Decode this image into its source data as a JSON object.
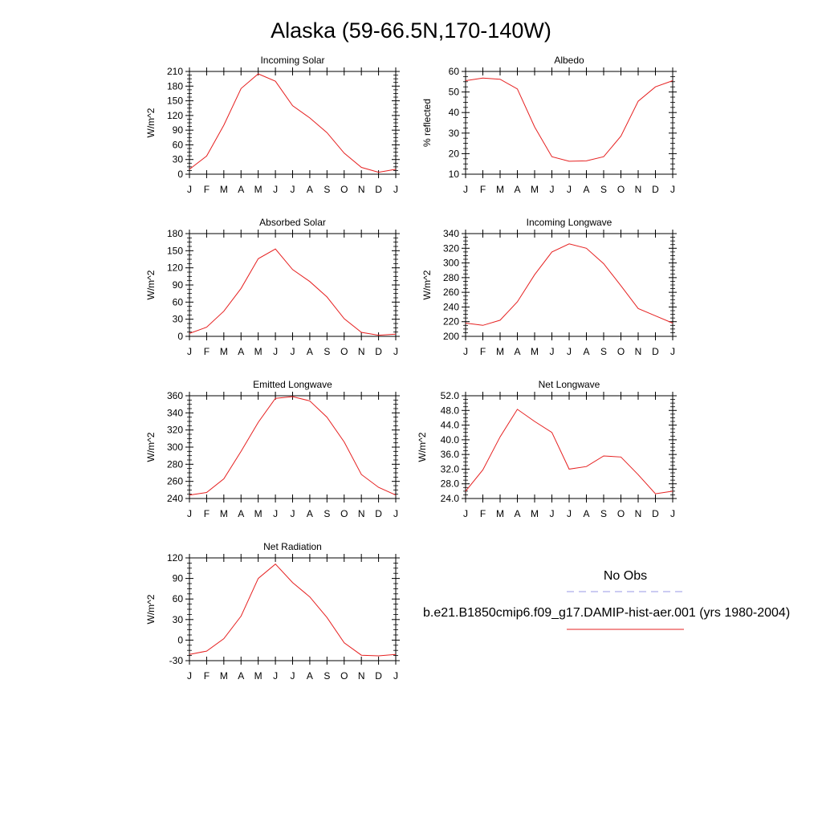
{
  "figure": {
    "title": "Alaska (59-66.5N,170-140W)"
  },
  "legend": {
    "obs_label": "No Obs",
    "obs_color": "#9a9ae6",
    "model_label": "b.e21.B1850cmip6.f09_g17.DAMIP-hist-aer.001 (yrs 1980-2004)",
    "model_color": "#e62020"
  },
  "chart_data": [
    {
      "type": "line",
      "title": "Incoming Solar",
      "ylabel": "W/m^2",
      "categories": [
        "J",
        "F",
        "M",
        "A",
        "M",
        "J",
        "J",
        "A",
        "S",
        "O",
        "N",
        "D",
        "J"
      ],
      "ylim": [
        0,
        210
      ],
      "yticks": [
        0,
        30,
        60,
        90,
        120,
        150,
        180,
        210
      ],
      "ytick_labels": [
        "0",
        "30",
        "60",
        "90",
        "120",
        "150",
        "180",
        "210"
      ],
      "series": [
        {
          "values": [
            10,
            37,
            100,
            175,
            205,
            190,
            140,
            115,
            85,
            43,
            14,
            4,
            10
          ]
        }
      ]
    },
    {
      "type": "line",
      "title": "Albedo",
      "ylabel": "% reflected",
      "categories": [
        "J",
        "F",
        "M",
        "A",
        "M",
        "J",
        "J",
        "A",
        "S",
        "O",
        "N",
        "D",
        "J"
      ],
      "ylim": [
        10,
        60
      ],
      "yticks": [
        10,
        20,
        30,
        40,
        50,
        60
      ],
      "ytick_labels": [
        "10",
        "20",
        "30",
        "40",
        "50",
        "60"
      ],
      "series": [
        {
          "values": [
            55.5,
            56.8,
            56.2,
            51.5,
            33,
            18.5,
            16.3,
            16.5,
            18.5,
            28.5,
            45.5,
            52.5,
            55.5
          ]
        }
      ]
    },
    {
      "type": "line",
      "title": "Absorbed Solar",
      "ylabel": "W/m^2",
      "categories": [
        "J",
        "F",
        "M",
        "A",
        "M",
        "J",
        "J",
        "A",
        "S",
        "O",
        "N",
        "D",
        "J"
      ],
      "ylim": [
        0,
        180
      ],
      "yticks": [
        0,
        30,
        60,
        90,
        120,
        150,
        180
      ],
      "ytick_labels": [
        "0",
        "30",
        "60",
        "90",
        "120",
        "150",
        "180"
      ],
      "series": [
        {
          "values": [
            5,
            16,
            44,
            84,
            136,
            153,
            117,
            96,
            69,
            31,
            7,
            2,
            4
          ]
        }
      ]
    },
    {
      "type": "line",
      "title": "Incoming Longwave",
      "ylabel": "W/m^2",
      "categories": [
        "J",
        "F",
        "M",
        "A",
        "M",
        "J",
        "J",
        "A",
        "S",
        "O",
        "N",
        "D",
        "J"
      ],
      "ylim": [
        200,
        340
      ],
      "yticks": [
        200,
        220,
        240,
        260,
        280,
        300,
        320,
        340
      ],
      "ytick_labels": [
        "200",
        "220",
        "240",
        "260",
        "280",
        "300",
        "320",
        "340"
      ],
      "series": [
        {
          "values": [
            218,
            215,
            222,
            247,
            284,
            315,
            326,
            320,
            299,
            269,
            238,
            228,
            218
          ]
        }
      ]
    },
    {
      "type": "line",
      "title": "Emitted Longwave",
      "ylabel": "W/m^2",
      "categories": [
        "J",
        "F",
        "M",
        "A",
        "M",
        "J",
        "J",
        "A",
        "S",
        "O",
        "N",
        "D",
        "J"
      ],
      "ylim": [
        240,
        360
      ],
      "yticks": [
        240,
        260,
        280,
        300,
        320,
        340,
        360
      ],
      "ytick_labels": [
        "240",
        "260",
        "280",
        "300",
        "320",
        "340",
        "360"
      ],
      "series": [
        {
          "values": [
            244,
            247,
            263,
            295,
            329,
            357,
            359,
            354,
            335,
            306,
            268,
            253,
            244
          ]
        }
      ]
    },
    {
      "type": "line",
      "title": "Net Longwave",
      "ylabel": "W/m^2",
      "categories": [
        "J",
        "F",
        "M",
        "A",
        "M",
        "J",
        "J",
        "A",
        "S",
        "O",
        "N",
        "D",
        "J"
      ],
      "ylim": [
        24,
        52
      ],
      "yticks": [
        24,
        28,
        32,
        36,
        40,
        44,
        48,
        52
      ],
      "ytick_labels": [
        "24.0",
        "28.0",
        "32.0",
        "36.0",
        "40.0",
        "44.0",
        "48.0",
        "52.0"
      ],
      "series": [
        {
          "values": [
            26,
            31.8,
            40.8,
            48.3,
            45,
            42,
            32,
            32.7,
            35.6,
            35.3,
            30.5,
            25.3,
            26
          ]
        }
      ]
    },
    {
      "type": "line",
      "title": "Net Radiation",
      "ylabel": "W/m^2",
      "categories": [
        "J",
        "F",
        "M",
        "A",
        "M",
        "J",
        "J",
        "A",
        "S",
        "O",
        "N",
        "D",
        "J"
      ],
      "ylim": [
        -30,
        120
      ],
      "yticks": [
        -30,
        0,
        30,
        60,
        90,
        120
      ],
      "ytick_labels": [
        "-30",
        "0",
        "30",
        "60",
        "90",
        "120"
      ],
      "series": [
        {
          "values": [
            -21,
            -16,
            2,
            35,
            90,
            111,
            84,
            63,
            33,
            -4,
            -22,
            -23,
            -21
          ]
        }
      ]
    }
  ]
}
